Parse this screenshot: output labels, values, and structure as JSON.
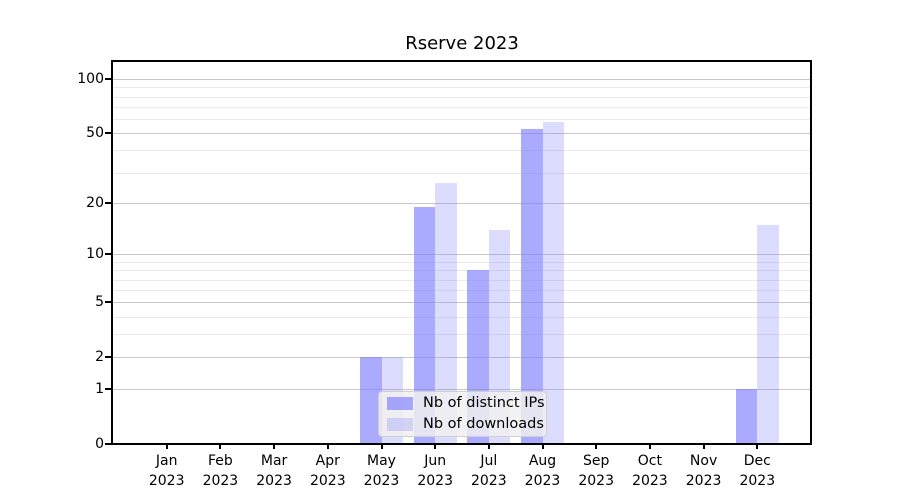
{
  "chart_data": {
    "type": "bar",
    "title": "Rserve 2023",
    "categories": [
      "Jan",
      "Feb",
      "Mar",
      "Apr",
      "May",
      "Jun",
      "Jul",
      "Aug",
      "Sep",
      "Oct",
      "Nov",
      "Dec"
    ],
    "year": "2023",
    "series": [
      {
        "name": "Nb of distinct IPs",
        "color": "rgba(124,124,255,0.65)",
        "values": [
          0,
          0,
          0,
          0,
          2,
          19,
          8,
          53,
          0,
          0,
          0,
          1
        ]
      },
      {
        "name": "Nb of downloads",
        "color": "rgba(124,124,255,0.27)",
        "values": [
          0,
          0,
          0,
          0,
          2,
          26,
          14,
          58,
          0,
          0,
          0,
          15
        ]
      }
    ],
    "yscale": "log1p",
    "ylim": [
      0,
      126
    ],
    "yticks_major": [
      0,
      1,
      2,
      5,
      10,
      20,
      50,
      100
    ],
    "yticks_minor": [
      3,
      4,
      6,
      7,
      8,
      9,
      30,
      40,
      60,
      70,
      80,
      90
    ],
    "grid": true,
    "legend": {
      "position": "lower-center"
    },
    "colors": {
      "major_grid": "#c8c8c8",
      "minor_grid": "#eaeaea",
      "axis": "#000000"
    }
  }
}
